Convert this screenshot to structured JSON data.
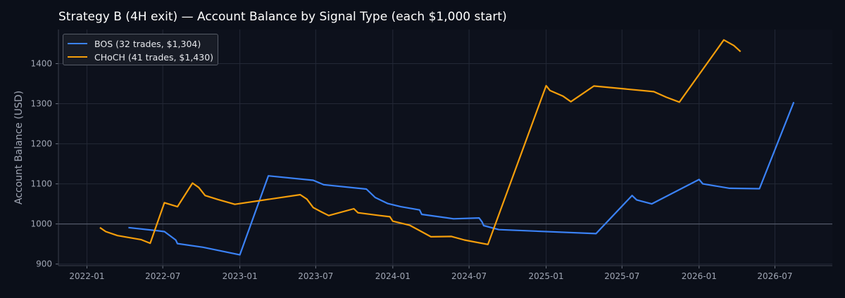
{
  "title": "Strategy B (4H exit) — Account Balance by Signal Type (each $1,000 start)",
  "chart_data": {
    "type": "line",
    "title": "Strategy B (4H exit) — Account Balance by Signal Type (each $1,000 start)",
    "xlabel": "",
    "ylabel": "Account Balance (USD)",
    "xlim": [
      "2021-10-25",
      "2026-11-15"
    ],
    "ylim": [
      896,
      1485
    ],
    "x_ticks": [
      "2022-01-01",
      "2022-07-01",
      "2023-01-01",
      "2023-07-01",
      "2024-01-01",
      "2024-07-01",
      "2025-01-01",
      "2025-07-01",
      "2026-01-01",
      "2026-07-01"
    ],
    "x_tick_labels": [
      "2022-01",
      "2022-07",
      "2023-01",
      "2023-07",
      "2024-01",
      "2024-07",
      "2025-01",
      "2025-07",
      "2026-01",
      "2026-07"
    ],
    "y_ticks": [
      900,
      1000,
      1100,
      1200,
      1300,
      1400
    ],
    "reference_line": 1000,
    "grid": true,
    "legend_position": "top-left",
    "colors": {
      "background": "#0b0f19",
      "grid": "#232836",
      "axis_text": "#a0a6b4",
      "reference": "#5a6070"
    },
    "series": [
      {
        "name": "BOS (32 trades, $1,304)",
        "color": "#3b82f6",
        "points": [
          [
            "2022-04-10",
            991
          ],
          [
            "2022-06-20",
            983
          ],
          [
            "2022-07-05",
            981
          ],
          [
            "2022-08-01",
            960
          ],
          [
            "2022-08-05",
            951
          ],
          [
            "2022-10-05",
            942
          ],
          [
            "2023-01-01",
            923
          ],
          [
            "2023-03-10",
            1120
          ],
          [
            "2023-06-25",
            1109
          ],
          [
            "2023-07-20",
            1098
          ],
          [
            "2023-10-30",
            1087
          ],
          [
            "2023-11-20",
            1066
          ],
          [
            "2023-12-20",
            1051
          ],
          [
            "2024-01-20",
            1043
          ],
          [
            "2024-03-05",
            1035
          ],
          [
            "2024-03-10",
            1024
          ],
          [
            "2024-05-25",
            1013
          ],
          [
            "2024-07-25",
            1015
          ],
          [
            "2024-08-01",
            1005
          ],
          [
            "2024-08-05",
            996
          ],
          [
            "2024-09-10",
            986
          ],
          [
            "2025-04-30",
            976
          ],
          [
            "2025-07-25",
            1071
          ],
          [
            "2025-08-05",
            1060
          ],
          [
            "2025-09-10",
            1050
          ],
          [
            "2026-01-01",
            1111
          ],
          [
            "2026-01-10",
            1100
          ],
          [
            "2026-03-15",
            1089
          ],
          [
            "2026-05-25",
            1088
          ],
          [
            "2026-08-15",
            1304
          ]
        ]
      },
      {
        "name": "CHoCH (41 trades, $1,430)",
        "color": "#f59e0b",
        "points": [
          [
            "2022-02-01",
            991
          ],
          [
            "2022-02-15",
            981
          ],
          [
            "2022-03-15",
            971
          ],
          [
            "2022-05-10",
            961
          ],
          [
            "2022-06-01",
            952
          ],
          [
            "2022-07-05",
            1053
          ],
          [
            "2022-08-05",
            1043
          ],
          [
            "2022-09-10",
            1102
          ],
          [
            "2022-09-25",
            1091
          ],
          [
            "2022-10-10",
            1071
          ],
          [
            "2022-11-10",
            1061
          ],
          [
            "2022-12-20",
            1049
          ],
          [
            "2023-05-25",
            1073
          ],
          [
            "2023-06-10",
            1062
          ],
          [
            "2023-06-25",
            1041
          ],
          [
            "2023-07-15",
            1030
          ],
          [
            "2023-08-01",
            1021
          ],
          [
            "2023-09-30",
            1038
          ],
          [
            "2023-10-10",
            1028
          ],
          [
            "2023-12-01",
            1021
          ],
          [
            "2023-12-25",
            1018
          ],
          [
            "2024-01-01",
            1007
          ],
          [
            "2024-02-10",
            997
          ],
          [
            "2024-02-28",
            987
          ],
          [
            "2024-04-01",
            968
          ],
          [
            "2024-05-20",
            969
          ],
          [
            "2024-06-20",
            960
          ],
          [
            "2024-08-15",
            949
          ],
          [
            "2025-01-01",
            1345
          ],
          [
            "2025-01-10",
            1333
          ],
          [
            "2025-02-10",
            1319
          ],
          [
            "2025-03-01",
            1305
          ],
          [
            "2025-04-25",
            1344
          ],
          [
            "2025-09-15",
            1330
          ],
          [
            "2025-10-15",
            1316
          ],
          [
            "2025-11-15",
            1304
          ],
          [
            "2026-03-01",
            1459
          ],
          [
            "2026-03-25",
            1445
          ],
          [
            "2026-04-10",
            1430
          ]
        ]
      }
    ]
  }
}
